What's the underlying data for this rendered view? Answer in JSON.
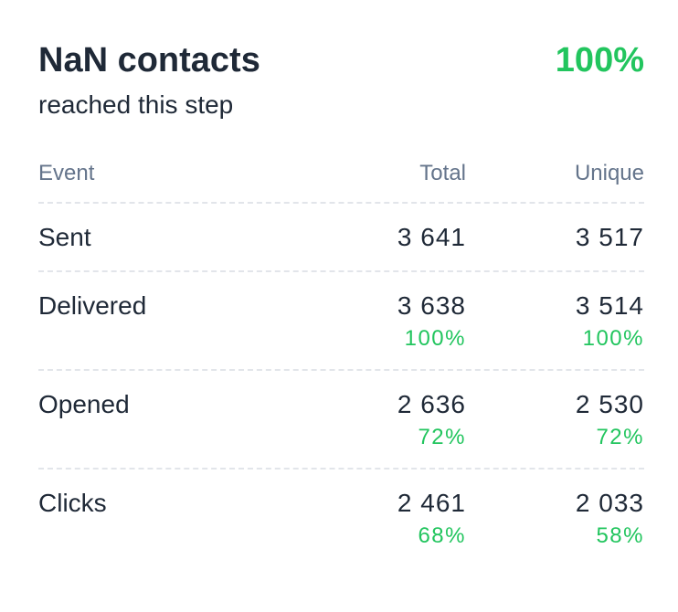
{
  "header": {
    "title": "NaN contacts",
    "subtitle": "reached this step",
    "rate": "100%"
  },
  "table": {
    "columns": [
      "Event",
      "Total",
      "Unique"
    ],
    "rows": [
      {
        "event": "Sent",
        "total": "3 641",
        "unique": "3 517"
      },
      {
        "event": "Delivered",
        "total": "3 638",
        "total_rate": "100%",
        "unique": "3 514",
        "unique_rate": "100%"
      },
      {
        "event": "Opened",
        "total": "2 636",
        "total_rate": "72%",
        "unique": "2 530",
        "unique_rate": "72%"
      },
      {
        "event": "Clicks",
        "total": "2 461",
        "total_rate": "68%",
        "unique": "2 033",
        "unique_rate": "58%"
      }
    ]
  }
}
